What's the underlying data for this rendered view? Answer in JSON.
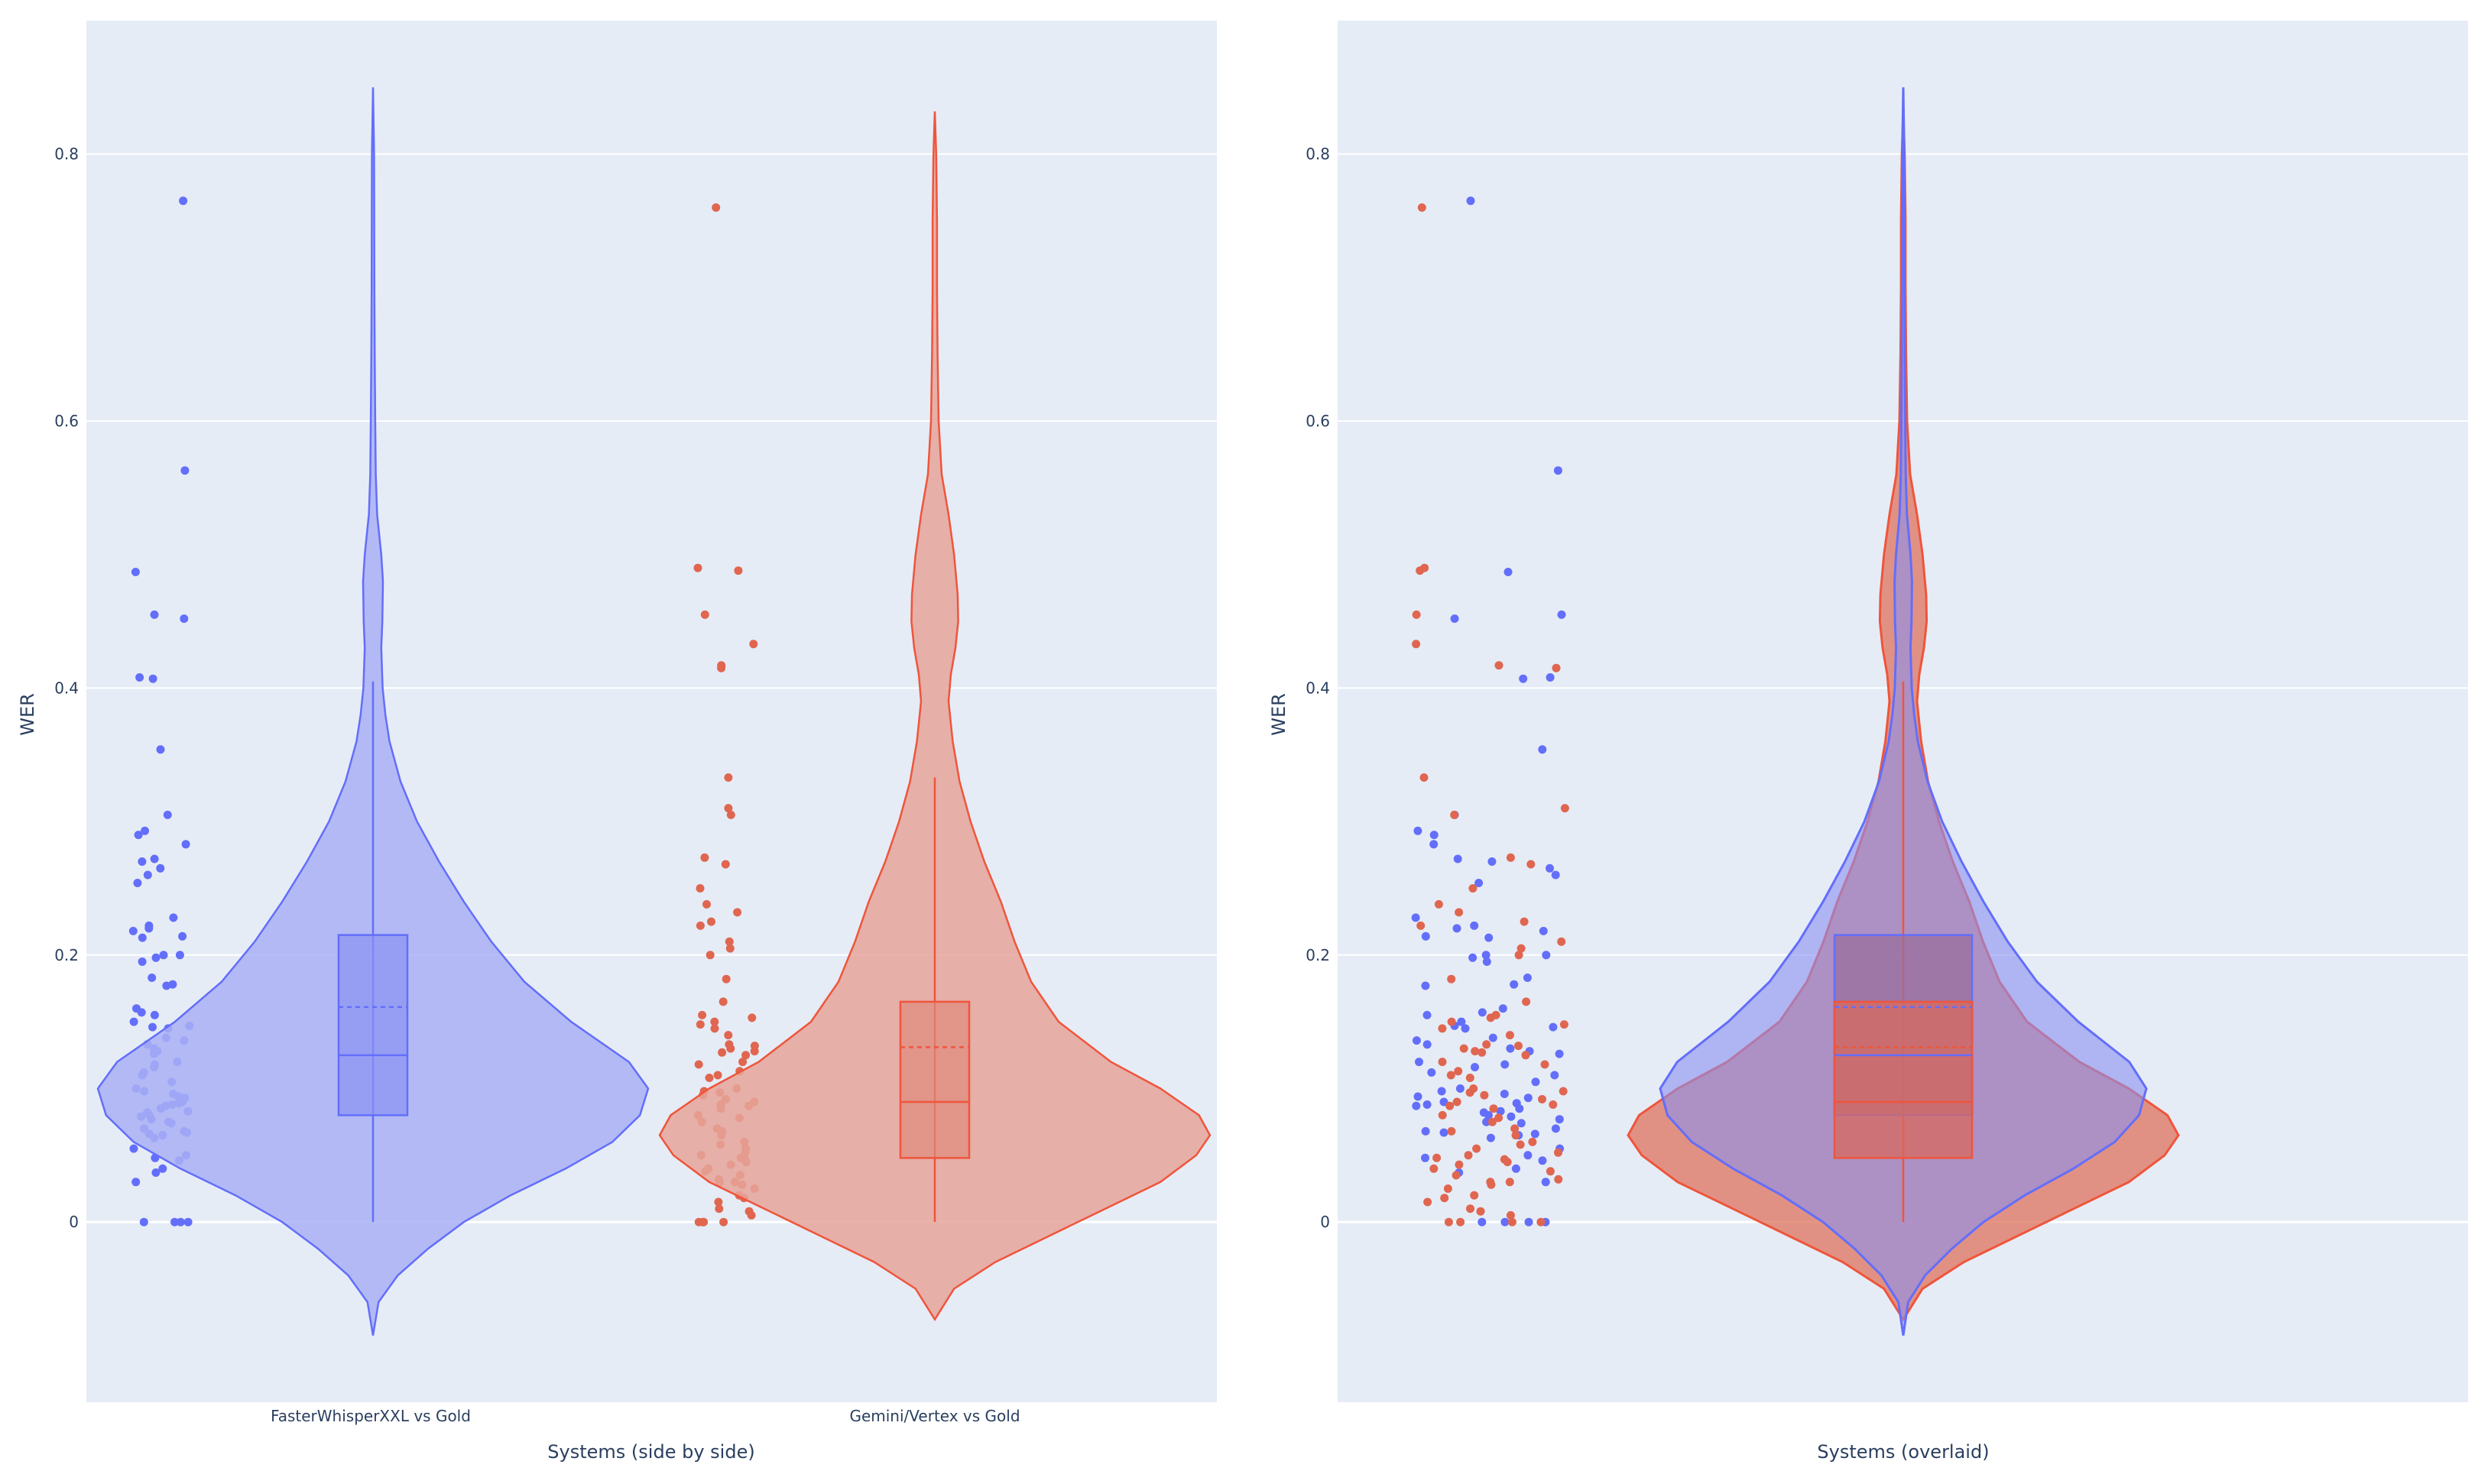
{
  "colors": {
    "background": "#ffffff",
    "plot_bg": "#e5ecf6",
    "grid": "#ffffff",
    "fw_line": "#636efa",
    "fw_fill": "#a9b0f5",
    "fw_box": "#8a93f4",
    "fw_point": "#636efa",
    "gm_line": "#ef553b",
    "gm_fill": "#e6a49a",
    "gm_box": "#df8a7c",
    "gm_point": "#e06650",
    "ov_fw_fill": "#8a8ff0",
    "ov_gm_fill": "#e07a66",
    "ov_fw_box": "#9a6f9e",
    "ov_gm_box": "#d86a5e"
  },
  "chart_data": [
    {
      "type": "violin",
      "layout": "side-by-side",
      "xlabel": "Systems (side by side)",
      "ylabel": "WER",
      "ylim": [
        -0.135,
        0.9
      ],
      "yticks": [
        0,
        0.2,
        0.4,
        0.6,
        0.8
      ],
      "categories": [
        "FasterWhisperXXL vs Gold",
        "Gemini/Vertex vs Gold"
      ],
      "grid": true,
      "legend": "none",
      "series": [
        {
          "category": "FasterWhisperXXL vs Gold",
          "box": {
            "q1": 0.08,
            "median": 0.125,
            "mean": 0.161,
            "q3": 0.215,
            "lower_fence": 0.0,
            "upper_fence": 0.405
          },
          "kde_range": [
            -0.085,
            0.85
          ],
          "density": [
            [
              -0.085,
              0.0
            ],
            [
              -0.06,
              0.02
            ],
            [
              -0.04,
              0.09
            ],
            [
              -0.02,
              0.2
            ],
            [
              0.0,
              0.33
            ],
            [
              0.02,
              0.5
            ],
            [
              0.04,
              0.7
            ],
            [
              0.06,
              0.87
            ],
            [
              0.08,
              0.97
            ],
            [
              0.1,
              1.0
            ],
            [
              0.12,
              0.93
            ],
            [
              0.15,
              0.72
            ],
            [
              0.18,
              0.55
            ],
            [
              0.21,
              0.43
            ],
            [
              0.24,
              0.33
            ],
            [
              0.27,
              0.24
            ],
            [
              0.3,
              0.16
            ],
            [
              0.33,
              0.1
            ],
            [
              0.36,
              0.06
            ],
            [
              0.38,
              0.045
            ],
            [
              0.4,
              0.035
            ],
            [
              0.43,
              0.03
            ],
            [
              0.45,
              0.034
            ],
            [
              0.48,
              0.036
            ],
            [
              0.5,
              0.03
            ],
            [
              0.53,
              0.015
            ],
            [
              0.56,
              0.01
            ],
            [
              0.6,
              0.008
            ],
            [
              0.65,
              0.006
            ],
            [
              0.7,
              0.005
            ],
            [
              0.75,
              0.0045
            ],
            [
              0.8,
              0.004
            ],
            [
              0.85,
              0.0
            ]
          ],
          "points": [
            0.765,
            0.563,
            0.487,
            0.455,
            0.452,
            0.408,
            0.407,
            0.354,
            0.305,
            0.293,
            0.29,
            0.283,
            0.272,
            0.27,
            0.265,
            0.26,
            0.254,
            0.228,
            0.222,
            0.22,
            0.218,
            0.214,
            0.213,
            0.2,
            0.198,
            0.195,
            0.2,
            0.183,
            0.178,
            0.177,
            0.16,
            0.157,
            0.155,
            0.15,
            0.147,
            0.146,
            0.145,
            0.138,
            0.136,
            0.133,
            0.13,
            0.128,
            0.126,
            0.12,
            0.118,
            0.116,
            0.112,
            0.11,
            0.105,
            0.1,
            0.098,
            0.096,
            0.094,
            0.093,
            0.09,
            0.089,
            0.088,
            0.087,
            0.085,
            0.083,
            0.082,
            0.08,
            0.079,
            0.077,
            0.075,
            0.074,
            0.07,
            0.068,
            0.067,
            0.066,
            0.065,
            0.063,
            0.055,
            0.05,
            0.048,
            0.046,
            0.04,
            0.037,
            0.03,
            0.0,
            0.0,
            0.0,
            0.0
          ]
        },
        {
          "category": "Gemini/Vertex vs Gold",
          "box": {
            "q1": 0.048,
            "median": 0.09,
            "mean": 0.131,
            "q3": 0.165,
            "lower_fence": 0.0,
            "upper_fence": 0.333
          },
          "kde_range": [
            -0.073,
            0.832
          ],
          "density": [
            [
              -0.073,
              0.0
            ],
            [
              -0.05,
              0.07
            ],
            [
              -0.03,
              0.22
            ],
            [
              -0.01,
              0.42
            ],
            [
              0.01,
              0.62
            ],
            [
              0.03,
              0.82
            ],
            [
              0.05,
              0.95
            ],
            [
              0.065,
              1.0
            ],
            [
              0.08,
              0.96
            ],
            [
              0.1,
              0.82
            ],
            [
              0.12,
              0.64
            ],
            [
              0.15,
              0.45
            ],
            [
              0.18,
              0.35
            ],
            [
              0.21,
              0.29
            ],
            [
              0.24,
              0.24
            ],
            [
              0.27,
              0.18
            ],
            [
              0.3,
              0.13
            ],
            [
              0.33,
              0.09
            ],
            [
              0.36,
              0.065
            ],
            [
              0.39,
              0.05
            ],
            [
              0.41,
              0.058
            ],
            [
              0.43,
              0.075
            ],
            [
              0.45,
              0.085
            ],
            [
              0.47,
              0.083
            ],
            [
              0.5,
              0.07
            ],
            [
              0.53,
              0.05
            ],
            [
              0.56,
              0.025
            ],
            [
              0.6,
              0.014
            ],
            [
              0.65,
              0.01
            ],
            [
              0.7,
              0.008
            ],
            [
              0.75,
              0.008
            ],
            [
              0.8,
              0.005
            ],
            [
              0.832,
              0.0
            ]
          ],
          "points": [
            0.76,
            0.49,
            0.488,
            0.455,
            0.433,
            0.417,
            0.415,
            0.333,
            0.31,
            0.305,
            0.273,
            0.268,
            0.25,
            0.238,
            0.232,
            0.225,
            0.222,
            0.21,
            0.205,
            0.2,
            0.182,
            0.165,
            0.155,
            0.153,
            0.15,
            0.148,
            0.145,
            0.14,
            0.133,
            0.132,
            0.13,
            0.128,
            0.127,
            0.125,
            0.12,
            0.118,
            0.113,
            0.11,
            0.108,
            0.1,
            0.098,
            0.097,
            0.095,
            0.092,
            0.09,
            0.088,
            0.087,
            0.085,
            0.08,
            0.078,
            0.075,
            0.07,
            0.068,
            0.065,
            0.06,
            0.058,
            0.055,
            0.052,
            0.05,
            0.048,
            0.047,
            0.045,
            0.043,
            0.04,
            0.038,
            0.035,
            0.032,
            0.03,
            0.03,
            0.028,
            0.025,
            0.02,
            0.018,
            0.015,
            0.01,
            0.008,
            0.005,
            0.0,
            0.0,
            0.0,
            0.0
          ]
        }
      ]
    },
    {
      "type": "violin",
      "layout": "overlaid",
      "xlabel": "Systems (overlaid)",
      "ylabel": "WER",
      "ylim": [
        -0.135,
        0.9
      ],
      "yticks": [
        0,
        0.2,
        0.4,
        0.6,
        0.8
      ],
      "grid": true,
      "legend": "none",
      "series_ref": [
        "FasterWhisperXXL vs Gold",
        "Gemini/Vertex vs Gold"
      ]
    }
  ],
  "tick_labels": [
    "0",
    "0.2",
    "0.4",
    "0.6",
    "0.8"
  ],
  "labels": {
    "ylabel_left": "WER",
    "ylabel_right": "WER",
    "xlabel_left": "Systems (side by side)",
    "xlabel_right": "Systems (overlaid)",
    "cat_fw": "FasterWhisperXXL vs Gold",
    "cat_gm": "Gemini/Vertex vs Gold"
  }
}
